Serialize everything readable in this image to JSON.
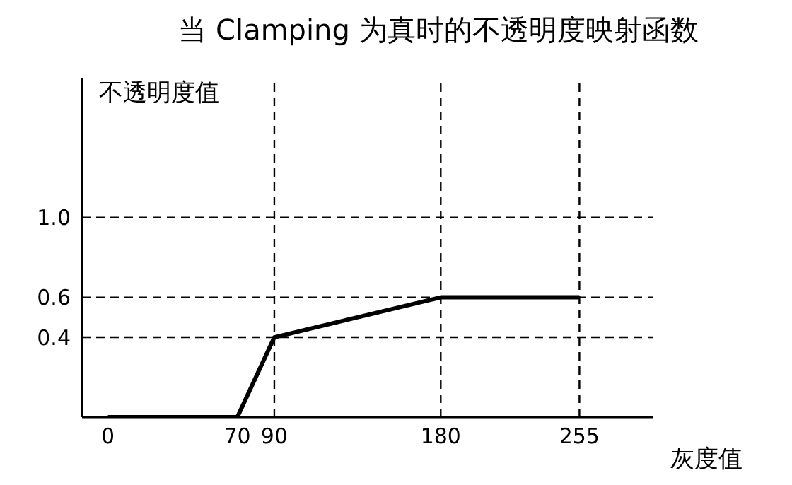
{
  "chart_data": {
    "type": "line",
    "title": "当 Clamping 为真时的不透明度映射函数",
    "xlabel": "灰度值",
    "ylabel": "不透明度值",
    "x": [
      0,
      70,
      90,
      180,
      255
    ],
    "series": [
      {
        "color": "#000000",
        "values": [
          0,
          0,
          0.4,
          0.6,
          0.6
        ]
      }
    ],
    "xlim": [
      -14,
      295
    ],
    "ylim": [
      0,
      1.7
    ],
    "xticks": [
      0,
      70,
      90,
      180,
      255
    ],
    "yticks": [
      0.4,
      0.6,
      {
        "value": 1,
        "label": "1.0"
      }
    ],
    "ref_lines": [
      {
        "axis": "y",
        "value": 1,
        "color": "#000000",
        "line_style": "dashed"
      },
      {
        "axis": "y",
        "value": 0.6,
        "color": "#000000",
        "line_style": "dashed"
      },
      {
        "axis": "y",
        "value": 0.4,
        "color": "#000000",
        "line_style": "dashed"
      },
      {
        "axis": "x",
        "value": 90,
        "color": "#000000",
        "line_style": "dashed"
      },
      {
        "axis": "x",
        "value": 180,
        "color": "#000000",
        "line_style": "dashed"
      },
      {
        "axis": "x",
        "value": 255,
        "color": "#000000",
        "line_style": "dashed"
      }
    ],
    "marker": "none",
    "line_style": "solid"
  }
}
